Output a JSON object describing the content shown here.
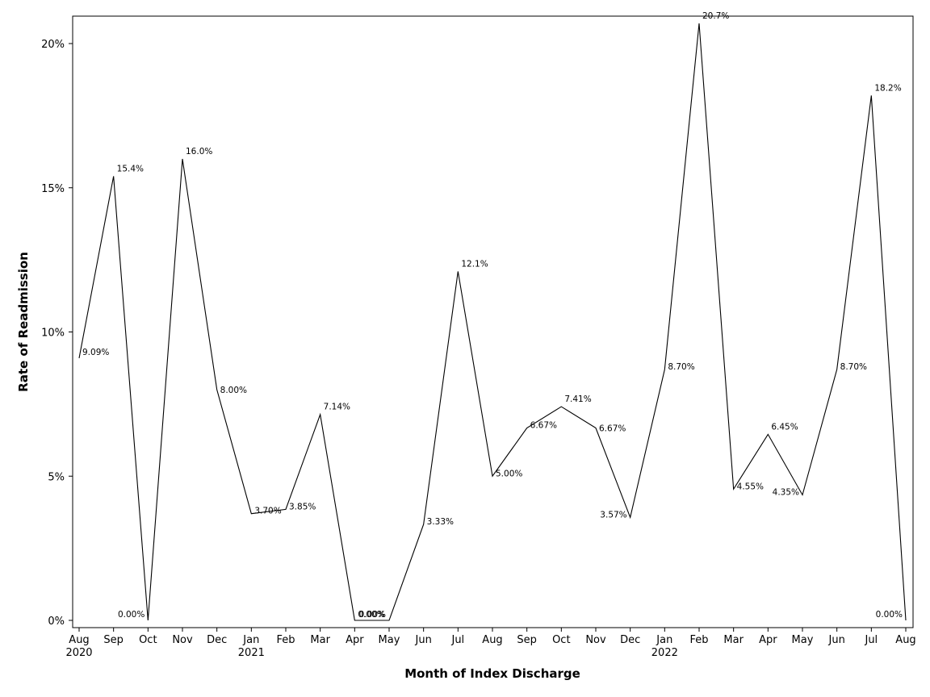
{
  "chart_data": {
    "type": "line",
    "title": "",
    "xlabel": "Month of Index Discharge",
    "ylabel": "Rate of Readmission",
    "ylim": [
      0,
      21
    ],
    "grid": false,
    "legend": "none",
    "line_color": "#000000",
    "y_ticks": [
      {
        "value": 0,
        "label": "0%"
      },
      {
        "value": 5,
        "label": "5%"
      },
      {
        "value": 10,
        "label": "10%"
      },
      {
        "value": 15,
        "label": "15%"
      },
      {
        "value": 20,
        "label": "20%"
      }
    ],
    "points": [
      {
        "month": "Aug",
        "year": "2020",
        "value": 9.09,
        "label": "9.09%"
      },
      {
        "month": "Sep",
        "year": "",
        "value": 15.4,
        "label": "15.4%"
      },
      {
        "month": "Oct",
        "year": "",
        "value": 0.0,
        "label": "0.00%"
      },
      {
        "month": "Nov",
        "year": "",
        "value": 16.0,
        "label": "16.0%"
      },
      {
        "month": "Dec",
        "year": "",
        "value": 8.0,
        "label": "8.00%"
      },
      {
        "month": "Jan",
        "year": "2021",
        "value": 3.7,
        "label": "3.70%"
      },
      {
        "month": "Feb",
        "year": "",
        "value": 3.85,
        "label": "3.85%"
      },
      {
        "month": "Mar",
        "year": "",
        "value": 7.14,
        "label": "7.14%"
      },
      {
        "month": "Apr",
        "year": "",
        "value": 0.0,
        "label": "0.00%"
      },
      {
        "month": "May",
        "year": "",
        "value": 0.0,
        "label": "0.00%"
      },
      {
        "month": "Jun",
        "year": "",
        "value": 3.33,
        "label": "3.33%"
      },
      {
        "month": "Jul",
        "year": "",
        "value": 12.1,
        "label": "12.1%"
      },
      {
        "month": "Aug",
        "year": "",
        "value": 5.0,
        "label": "5.00%"
      },
      {
        "month": "Sep",
        "year": "",
        "value": 6.67,
        "label": "6.67%"
      },
      {
        "month": "Oct",
        "year": "",
        "value": 7.41,
        "label": "7.41%"
      },
      {
        "month": "Nov",
        "year": "",
        "value": 6.67,
        "label": "6.67%"
      },
      {
        "month": "Dec",
        "year": "",
        "value": 3.57,
        "label": "3.57%"
      },
      {
        "month": "Jan",
        "year": "2022",
        "value": 8.7,
        "label": "8.70%"
      },
      {
        "month": "Feb",
        "year": "",
        "value": 20.7,
        "label": "20.7%"
      },
      {
        "month": "Mar",
        "year": "",
        "value": 4.55,
        "label": "4.55%"
      },
      {
        "month": "Apr",
        "year": "",
        "value": 6.45,
        "label": "6.45%"
      },
      {
        "month": "May",
        "year": "",
        "value": 4.35,
        "label": "4.35%"
      },
      {
        "month": "Jun",
        "year": "",
        "value": 8.7,
        "label": "8.70%"
      },
      {
        "month": "Jul",
        "year": "",
        "value": 18.2,
        "label": "18.2%"
      },
      {
        "month": "Aug",
        "year": "",
        "value": 0.0,
        "label": "0.00%"
      }
    ]
  }
}
